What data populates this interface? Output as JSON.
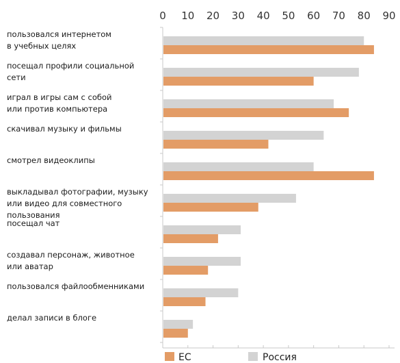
{
  "chart_data": {
    "type": "bar",
    "orientation": "horizontal",
    "xlim": [
      0,
      90
    ],
    "x_ticks": [
      "0",
      "10",
      "20",
      "30",
      "40",
      "50",
      "60",
      "70",
      "80",
      "90"
    ],
    "categories": [
      [
        "пользовался интернетом",
        "в учебных целях"
      ],
      [
        "посещал профили социальной",
        "сети"
      ],
      [
        "играл в игры сам с собой",
        "или против компьютера"
      ],
      [
        "скачивал музыку и фильмы"
      ],
      [
        "смотрел видеоклипы"
      ],
      [
        "выкладывал фотографии, музыку",
        "или видео для совместного",
        "пользования"
      ],
      [
        "посещал чат"
      ],
      [
        "создавал персонаж, животное",
        "или аватар"
      ],
      [
        "пользовался файлообменниками"
      ],
      [
        "делал записи в блоге"
      ]
    ],
    "series": [
      {
        "name": "Россия",
        "color": "#d3d3d3",
        "values": [
          80,
          78,
          68,
          64,
          60,
          53,
          31,
          31,
          30,
          12
        ]
      },
      {
        "name": "ЕС",
        "color": "#e39c66",
        "values": [
          84,
          60,
          74,
          42,
          84,
          38,
          22,
          18,
          17,
          10
        ]
      }
    ],
    "legend": {
      "position": "bottom",
      "order": [
        "ЕС",
        "Россия"
      ]
    },
    "grid": false
  }
}
